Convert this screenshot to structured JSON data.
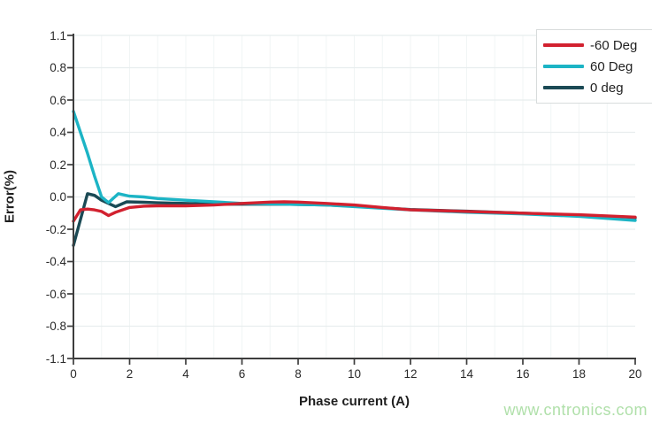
{
  "watermark": {
    "text": "www.cntronics.com",
    "color": "#b0e0aa"
  },
  "style": {
    "axis_color": "#3d3d3d",
    "text_color": "#1f1f1f",
    "grid_color_horizontal": "#e8edee",
    "grid_color_vertical": "#f1f5f5",
    "legend_border_color": "#d8dcdc",
    "background": "#ffffff"
  },
  "chart_data": {
    "type": "line",
    "title": "",
    "xlabel": "Phase current (A)",
    "ylabel": "Error(%)",
    "xlim": [
      0,
      20
    ],
    "x_ticks": [
      0,
      2,
      4,
      6,
      8,
      10,
      12,
      14,
      16,
      18,
      20
    ],
    "x_tick_labels": [
      "0",
      "2",
      "4",
      "6",
      "8",
      "10",
      "12",
      "14",
      "16",
      "18",
      "20"
    ],
    "y_tick_labels": [
      "1.1",
      "0.8",
      "0.6",
      "0.4",
      "0.2",
      "0.0",
      "-0.2",
      "-0.4",
      "-0.6",
      "-0.8",
      "-1.1"
    ],
    "y_tick_step_value": 0.2,
    "grid": true,
    "x_grid_step": 1,
    "legend_position": "top-right",
    "legend_order": [
      "-60 Deg",
      "60 Deg",
      "0 deg"
    ],
    "series": [
      {
        "name": "-60 Deg",
        "color": "#d2212f",
        "points": [
          [
            0,
            -0.15
          ],
          [
            0.25,
            -0.08
          ],
          [
            0.5,
            -0.075
          ],
          [
            0.75,
            -0.08
          ],
          [
            1,
            -0.09
          ],
          [
            1.25,
            -0.115
          ],
          [
            1.5,
            -0.095
          ],
          [
            2,
            -0.065
          ],
          [
            2.5,
            -0.057
          ],
          [
            3,
            -0.055
          ],
          [
            4,
            -0.055
          ],
          [
            5,
            -0.05
          ],
          [
            6,
            -0.04
          ],
          [
            7,
            -0.032
          ],
          [
            7.5,
            -0.03
          ],
          [
            8,
            -0.032
          ],
          [
            9,
            -0.04
          ],
          [
            10,
            -0.05
          ],
          [
            11,
            -0.065
          ],
          [
            12,
            -0.08
          ],
          [
            14,
            -0.09
          ],
          [
            16,
            -0.1
          ],
          [
            18,
            -0.11
          ],
          [
            20,
            -0.125
          ]
        ]
      },
      {
        "name": "60 Deg",
        "color": "#1cb4c5",
        "points": [
          [
            0,
            0.53
          ],
          [
            0.5,
            0.27
          ],
          [
            0.75,
            0.13
          ],
          [
            1,
            0.0
          ],
          [
            1.25,
            -0.035
          ],
          [
            1.6,
            0.02
          ],
          [
            2,
            0.005
          ],
          [
            2.5,
            0.0
          ],
          [
            3,
            -0.01
          ],
          [
            4,
            -0.02
          ],
          [
            5,
            -0.03
          ],
          [
            6,
            -0.04
          ],
          [
            7.5,
            -0.045
          ],
          [
            9,
            -0.05
          ],
          [
            10,
            -0.06
          ],
          [
            11,
            -0.07
          ],
          [
            12,
            -0.08
          ],
          [
            14,
            -0.095
          ],
          [
            16,
            -0.105
          ],
          [
            18,
            -0.12
          ],
          [
            20,
            -0.145
          ]
        ]
      },
      {
        "name": "0 deg",
        "color": "#1b4a55",
        "points": [
          [
            0,
            -0.3
          ],
          [
            0.5,
            0.02
          ],
          [
            0.75,
            0.01
          ],
          [
            1,
            -0.02
          ],
          [
            1.5,
            -0.06
          ],
          [
            1.9,
            -0.03
          ],
          [
            2.5,
            -0.033
          ],
          [
            3,
            -0.036
          ],
          [
            4,
            -0.04
          ],
          [
            5,
            -0.045
          ],
          [
            6,
            -0.045
          ],
          [
            7.5,
            -0.045
          ],
          [
            9,
            -0.05
          ],
          [
            10,
            -0.057
          ],
          [
            12,
            -0.078
          ],
          [
            14,
            -0.088
          ],
          [
            16,
            -0.1
          ],
          [
            18,
            -0.113
          ],
          [
            20,
            -0.13
          ]
        ]
      }
    ]
  }
}
